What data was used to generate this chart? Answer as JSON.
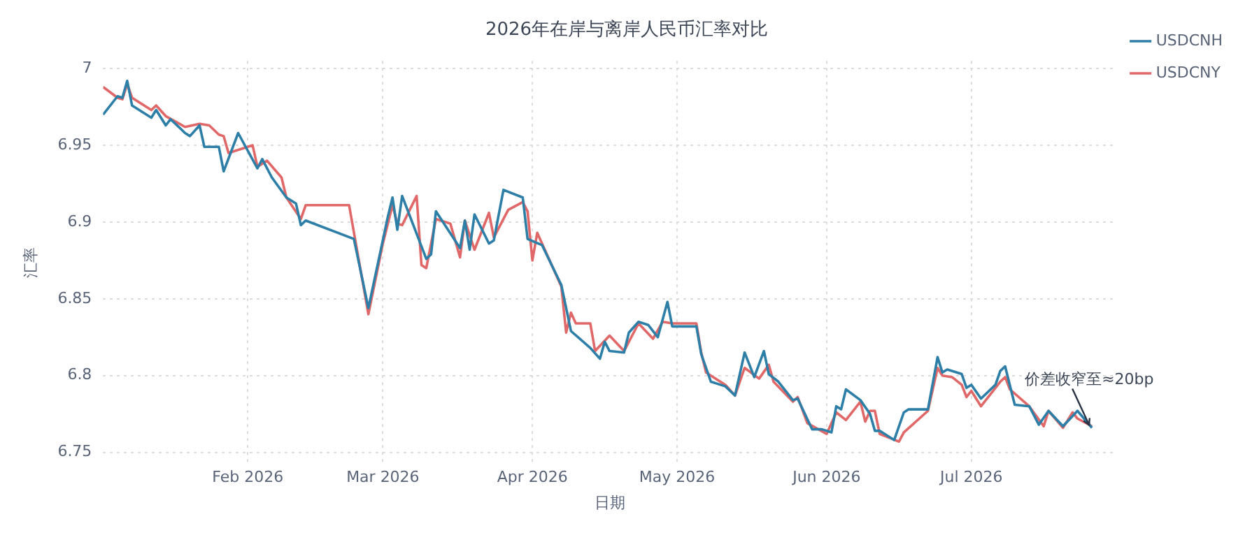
{
  "chart_data": {
    "type": "line",
    "title": "2026年在岸与离岸人民币汇率对比",
    "xlabel": "日期",
    "ylabel": "汇率",
    "xlim": [
      "2026-01-02",
      "2026-07-31"
    ],
    "xticks": [
      {
        "value": "2026-02-01",
        "label": "Feb 2026"
      },
      {
        "value": "2026-03-01",
        "label": "Mar 2026"
      },
      {
        "value": "2026-04-01",
        "label": "Apr 2026"
      },
      {
        "value": "2026-05-01",
        "label": "May 2026"
      },
      {
        "value": "2026-06-01",
        "label": "Jun 2026"
      },
      {
        "value": "2026-07-01",
        "label": "Jul 2026"
      }
    ],
    "ylim": [
      6.742,
      7.005
    ],
    "yticks": [
      6.75,
      6.8,
      6.85,
      6.9,
      6.95,
      7
    ],
    "grid": true,
    "legend": "top right",
    "marker": "none",
    "line_style": "solid",
    "annotations": [
      {
        "text": "价差收窄至≈20bp",
        "x": "2026-07-26",
        "y": 6.766
      }
    ],
    "series": [
      {
        "name": "USDCNH",
        "color": "#2e7fa8",
        "x": [
          "2026-01-02",
          "2026-01-05",
          "2026-01-06",
          "2026-01-07",
          "2026-01-08",
          "2026-01-12",
          "2026-01-13",
          "2026-01-15",
          "2026-01-16",
          "2026-01-19",
          "2026-01-20",
          "2026-01-22",
          "2026-01-23",
          "2026-01-26",
          "2026-01-27",
          "2026-01-30",
          "2026-02-03",
          "2026-02-04",
          "2026-02-06",
          "2026-02-09",
          "2026-02-11",
          "2026-02-12",
          "2026-02-13",
          "2026-02-23",
          "2026-02-26",
          "2026-03-02",
          "2026-03-03",
          "2026-03-04",
          "2026-03-05",
          "2026-03-10",
          "2026-03-11",
          "2026-03-12",
          "2026-03-17",
          "2026-03-18",
          "2026-03-19",
          "2026-03-20",
          "2026-03-23",
          "2026-03-24",
          "2026-03-26",
          "2026-03-30",
          "2026-03-31",
          "2026-04-03",
          "2026-04-07",
          "2026-04-09",
          "2026-04-13",
          "2026-04-15",
          "2026-04-16",
          "2026-04-17",
          "2026-04-20",
          "2026-04-21",
          "2026-04-23",
          "2026-04-25",
          "2026-04-27",
          "2026-04-29",
          "2026-04-30",
          "2026-05-05",
          "2026-05-06",
          "2026-05-08",
          "2026-05-11",
          "2026-05-13",
          "2026-05-15",
          "2026-05-17",
          "2026-05-19",
          "2026-05-20",
          "2026-05-22",
          "2026-05-25",
          "2026-05-26",
          "2026-05-29",
          "2026-05-31",
          "2026-06-02",
          "2026-06-03",
          "2026-06-04",
          "2026-06-05",
          "2026-06-08",
          "2026-06-10",
          "2026-06-11",
          "2026-06-12",
          "2026-06-15",
          "2026-06-17",
          "2026-06-18",
          "2026-06-22",
          "2026-06-24",
          "2026-06-25",
          "2026-06-26",
          "2026-06-29",
          "2026-06-30",
          "2026-07-01",
          "2026-07-03",
          "2026-07-06",
          "2026-07-07",
          "2026-07-08",
          "2026-07-10",
          "2026-07-13",
          "2026-07-15",
          "2026-07-17",
          "2026-07-20",
          "2026-07-23",
          "2026-07-26"
        ],
        "values": [
          6.97,
          6.982,
          6.981,
          6.992,
          6.976,
          6.968,
          6.973,
          6.963,
          6.967,
          6.958,
          6.956,
          6.963,
          6.949,
          6.949,
          6.933,
          6.958,
          6.935,
          6.941,
          6.929,
          6.916,
          6.912,
          6.898,
          6.901,
          6.889,
          6.844,
          6.903,
          6.916,
          6.895,
          6.917,
          6.876,
          6.879,
          6.907,
          6.883,
          6.901,
          6.882,
          6.905,
          6.886,
          6.888,
          6.921,
          6.916,
          6.889,
          6.885,
          6.859,
          6.829,
          6.818,
          6.811,
          6.822,
          6.816,
          6.815,
          6.828,
          6.835,
          6.833,
          6.825,
          6.848,
          6.832,
          6.832,
          6.814,
          6.796,
          6.793,
          6.787,
          6.815,
          6.799,
          6.816,
          6.801,
          6.796,
          6.784,
          6.785,
          6.765,
          6.765,
          6.763,
          6.78,
          6.778,
          6.791,
          6.784,
          6.775,
          6.764,
          6.764,
          6.758,
          6.776,
          6.778,
          6.778,
          6.812,
          6.802,
          6.804,
          6.801,
          6.792,
          6.794,
          6.785,
          6.794,
          6.803,
          6.806,
          6.781,
          6.78,
          6.768,
          6.777,
          6.767,
          6.777,
          6.766
        ]
      },
      {
        "name": "USDCNY",
        "color": "#e06868",
        "x": [
          "2026-01-02",
          "2026-01-05",
          "2026-01-06",
          "2026-01-07",
          "2026-01-08",
          "2026-01-12",
          "2026-01-13",
          "2026-01-15",
          "2026-01-19",
          "2026-01-22",
          "2026-01-24",
          "2026-01-26",
          "2026-01-27",
          "2026-01-28",
          "2026-02-02",
          "2026-02-03",
          "2026-02-05",
          "2026-02-08",
          "2026-02-09",
          "2026-02-12",
          "2026-02-13",
          "2026-02-22",
          "2026-02-26",
          "2026-03-01",
          "2026-03-03",
          "2026-03-04",
          "2026-03-05",
          "2026-03-08",
          "2026-03-09",
          "2026-03-10",
          "2026-03-12",
          "2026-03-15",
          "2026-03-17",
          "2026-03-18",
          "2026-03-20",
          "2026-03-23",
          "2026-03-24",
          "2026-03-27",
          "2026-03-30",
          "2026-03-31",
          "2026-04-01",
          "2026-04-02",
          "2026-04-07",
          "2026-04-08",
          "2026-04-09",
          "2026-04-10",
          "2026-04-13",
          "2026-04-14",
          "2026-04-17",
          "2026-04-20",
          "2026-04-23",
          "2026-04-26",
          "2026-04-28",
          "2026-04-30",
          "2026-05-05",
          "2026-05-06",
          "2026-05-07",
          "2026-05-11",
          "2026-05-13",
          "2026-05-15",
          "2026-05-18",
          "2026-05-20",
          "2026-05-21",
          "2026-05-25",
          "2026-05-26",
          "2026-05-28",
          "2026-06-01",
          "2026-06-03",
          "2026-06-05",
          "2026-06-08",
          "2026-06-09",
          "2026-06-10",
          "2026-06-11",
          "2026-06-12",
          "2026-06-16",
          "2026-06-17",
          "2026-06-22",
          "2026-06-24",
          "2026-06-25",
          "2026-06-27",
          "2026-06-29",
          "2026-06-30",
          "2026-07-01",
          "2026-07-03",
          "2026-07-07",
          "2026-07-08",
          "2026-07-09",
          "2026-07-13",
          "2026-07-16",
          "2026-07-17",
          "2026-07-20",
          "2026-07-22",
          "2026-07-23",
          "2026-07-26"
        ],
        "values": [
          6.988,
          6.981,
          6.98,
          6.99,
          6.981,
          6.973,
          6.976,
          6.969,
          6.962,
          6.964,
          6.963,
          6.957,
          6.956,
          6.945,
          6.95,
          6.936,
          6.94,
          6.929,
          6.916,
          6.902,
          6.911,
          6.911,
          6.84,
          6.886,
          6.911,
          6.899,
          6.898,
          6.917,
          6.872,
          6.87,
          6.902,
          6.899,
          6.877,
          6.901,
          6.882,
          6.906,
          6.89,
          6.908,
          6.913,
          6.907,
          6.875,
          6.893,
          6.858,
          6.828,
          6.841,
          6.834,
          6.834,
          6.816,
          6.826,
          6.816,
          6.834,
          6.824,
          6.835,
          6.834,
          6.834,
          6.815,
          6.802,
          6.794,
          6.787,
          6.805,
          6.798,
          6.807,
          6.796,
          6.783,
          6.786,
          6.769,
          6.762,
          6.776,
          6.771,
          6.783,
          6.77,
          6.777,
          6.777,
          6.762,
          6.757,
          6.763,
          6.777,
          6.805,
          6.8,
          6.799,
          6.794,
          6.786,
          6.79,
          6.78,
          6.796,
          6.799,
          6.791,
          6.78,
          6.767,
          6.777,
          6.766,
          6.776,
          6.772,
          6.767
        ]
      }
    ]
  }
}
